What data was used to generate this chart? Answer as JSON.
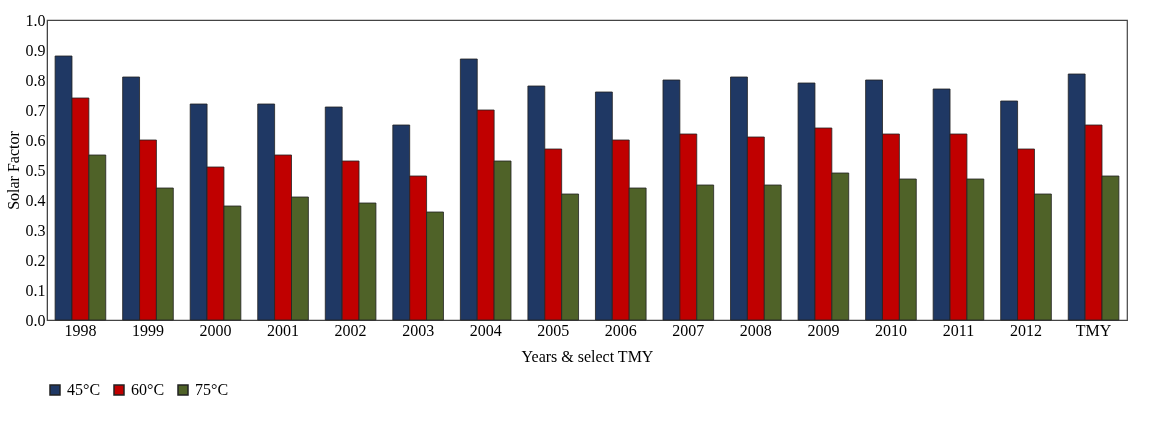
{
  "chart_data": {
    "type": "bar",
    "xlabel": "Years  & select TMY",
    "ylabel": "Solar  Factor",
    "categories": [
      "1998",
      "1999",
      "2000",
      "2001",
      "2002",
      "2003",
      "2004",
      "2005",
      "2006",
      "2007",
      "2008",
      "2009",
      "2010",
      "2011",
      "2012",
      "TMY"
    ],
    "series": [
      {
        "name": "45°C",
        "color": "#1f3864",
        "values": [
          0.88,
          0.81,
          0.72,
          0.72,
          0.71,
          0.65,
          0.87,
          0.78,
          0.76,
          0.8,
          0.81,
          0.79,
          0.8,
          0.77,
          0.73,
          0.82
        ]
      },
      {
        "name": "60°C",
        "color": "#c00000",
        "values": [
          0.74,
          0.6,
          0.51,
          0.55,
          0.53,
          0.48,
          0.7,
          0.57,
          0.6,
          0.62,
          0.61,
          0.64,
          0.62,
          0.62,
          0.57,
          0.65
        ]
      },
      {
        "name": "75°C",
        "color": "#4f6228",
        "values": [
          0.55,
          0.44,
          0.38,
          0.41,
          0.39,
          0.36,
          0.53,
          0.42,
          0.44,
          0.45,
          0.45,
          0.49,
          0.47,
          0.47,
          0.42,
          0.48
        ]
      }
    ],
    "ylim": [
      0,
      1.0
    ],
    "yticks": [
      {
        "value": 0,
        "label": "0.0"
      },
      0.1,
      0.2,
      0.3,
      0.4,
      0.5,
      0.6,
      0.7,
      0.8,
      0.9,
      {
        "value": 1.0,
        "label": "1.0"
      }
    ],
    "grid": false,
    "legend": "bottom"
  }
}
